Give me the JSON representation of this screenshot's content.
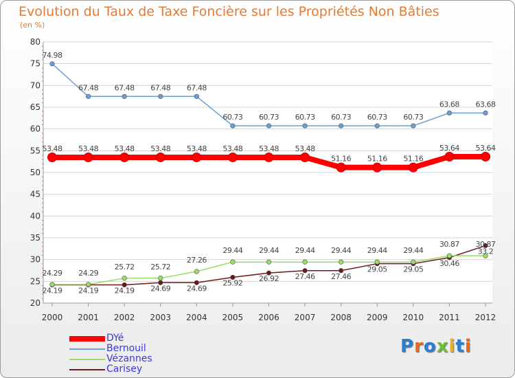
{
  "header": {
    "title": "Evolution du Taux de Taxe Foncière sur les Propriétés Non Bâties",
    "subtitle": "(en %)"
  },
  "logo": {
    "text": "Proxiti"
  },
  "chart_data": {
    "type": "line",
    "x": [
      "2000",
      "2001",
      "2002",
      "2003",
      "2004",
      "2005",
      "2006",
      "2007",
      "2008",
      "2009",
      "2010",
      "2011",
      "2012"
    ],
    "ylim": [
      20,
      80
    ],
    "yticks": [
      20,
      25,
      30,
      35,
      40,
      45,
      50,
      55,
      60,
      65,
      70,
      75,
      80
    ],
    "grid": "horizontal",
    "legend_position": "bottom-left",
    "series": [
      {
        "name": "DYé",
        "color": "#ff0000",
        "values": [
          53.48,
          53.48,
          53.48,
          53.48,
          53.48,
          53.48,
          53.48,
          53.48,
          51.16,
          51.16,
          51.16,
          53.64,
          53.64
        ],
        "labels": [
          "53.48",
          "53.48",
          "53.48",
          "53.48",
          "53.48",
          "53.48",
          "53.48",
          "53.48",
          "51.16",
          "51.16",
          "51.16",
          "53.64",
          "53.64"
        ]
      },
      {
        "name": "Bernouil",
        "color": "#6a9fd4",
        "values": [
          74.98,
          67.48,
          67.48,
          67.48,
          67.48,
          60.73,
          60.73,
          60.73,
          60.73,
          60.73,
          60.73,
          63.68,
          63.68
        ],
        "labels": [
          "74.98",
          "67.48",
          "67.48",
          "67.48",
          "67.48",
          "60.73",
          "60.73",
          "60.73",
          "60.73",
          "60.73",
          "60.73",
          "63.68",
          "63.68"
        ]
      },
      {
        "name": "Vézannes",
        "color": "#99dd66",
        "values": [
          24.29,
          24.29,
          25.72,
          25.72,
          27.26,
          29.44,
          29.44,
          29.44,
          29.44,
          29.44,
          29.44,
          30.87,
          30.87
        ],
        "labels": [
          "24.29",
          "24.29",
          "25.72",
          "25.72",
          "27.26",
          "29.44",
          "29.44",
          "29.44",
          "29.44",
          "29.44",
          "29.44",
          "30.87",
          "30.87"
        ]
      },
      {
        "name": "Carisey",
        "color": "#6b1a1a",
        "values": [
          24.19,
          24.19,
          24.19,
          24.69,
          24.69,
          25.92,
          26.92,
          27.46,
          27.46,
          29.05,
          29.05,
          30.46,
          33.2
        ],
        "labels": [
          "24.19",
          "24.19",
          "24.19",
          "24.69",
          "24.69",
          "25.92",
          "26.92",
          "27.46",
          "27.46",
          "29.05",
          "29.05",
          "30.46",
          "33.2"
        ]
      }
    ]
  }
}
